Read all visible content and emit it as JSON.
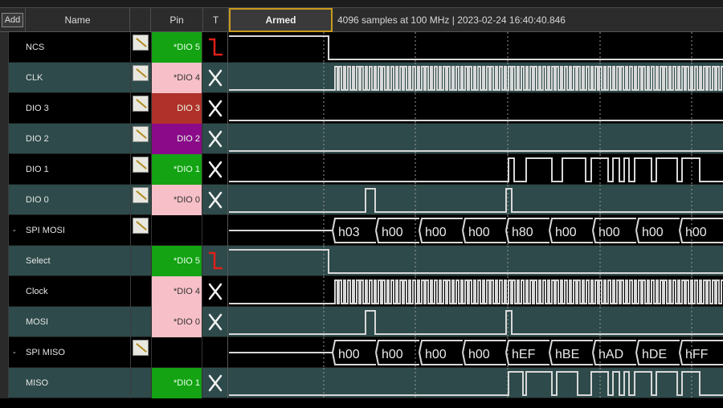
{
  "header": {
    "add_label": "Add",
    "name_label": "Name",
    "pin_label": "Pin",
    "trigger_label": "T",
    "armed_label": "Armed",
    "status": "4096 samples at 100 MHz | 2023-02-24 16:40:40.846"
  },
  "colors": {
    "green": "#13a313",
    "pink": "#f7c0c8",
    "red": "#b0302a",
    "purple": "#8a0a8a",
    "trace": "#d8d8d8",
    "trigger_edge": "#e0201a"
  },
  "rows": [
    {
      "name": "NCS",
      "expander": "",
      "note": true,
      "pin": "*DIO  5",
      "pin_color": "green",
      "trigger": "falling-edge"
    },
    {
      "name": "CLK",
      "expander": "",
      "note": true,
      "pin": "*DIO  4",
      "pin_color": "pink",
      "trigger": "x"
    },
    {
      "name": "DIO 3",
      "expander": "",
      "note": true,
      "pin": "DIO  3",
      "pin_color": "red",
      "trigger": "x"
    },
    {
      "name": "DIO 2",
      "expander": "",
      "note": true,
      "pin": "DIO  2",
      "pin_color": "purple",
      "trigger": "x"
    },
    {
      "name": "DIO 1",
      "expander": "",
      "note": true,
      "pin": "*DIO  1",
      "pin_color": "green",
      "trigger": "x"
    },
    {
      "name": "DIO 0",
      "expander": "",
      "note": true,
      "pin": "*DIO  0",
      "pin_color": "pink",
      "trigger": "x"
    },
    {
      "name": "SPI MOSI",
      "expander": "-",
      "note": true,
      "pin": "",
      "pin_color": "none",
      "trigger": "none"
    },
    {
      "name": "Select",
      "expander": "",
      "note": false,
      "pin": "*DIO  5",
      "pin_color": "green",
      "trigger": "falling-edge"
    },
    {
      "name": "Clock",
      "expander": "",
      "note": false,
      "pin": "*DIO  4",
      "pin_color": "pink",
      "trigger": "x"
    },
    {
      "name": "MOSI",
      "expander": "",
      "note": false,
      "pin": "*DIO  0",
      "pin_color": "pink",
      "trigger": "x"
    },
    {
      "name": "SPI MISO",
      "expander": "-",
      "note": true,
      "pin": "",
      "pin_color": "none",
      "trigger": "none"
    },
    {
      "name": "MISO",
      "expander": "",
      "note": false,
      "pin": "*DIO  1",
      "pin_color": "green",
      "trigger": "x"
    }
  ],
  "bus_values": {
    "spi_mosi": [
      "h03",
      "h00",
      "h00",
      "h00",
      "h80",
      "h00",
      "h00",
      "h00",
      "h00"
    ],
    "spi_miso": [
      "h00",
      "h00",
      "h00",
      "h00",
      "hEF",
      "hBE",
      "hAD",
      "hDE",
      "hFF"
    ]
  }
}
